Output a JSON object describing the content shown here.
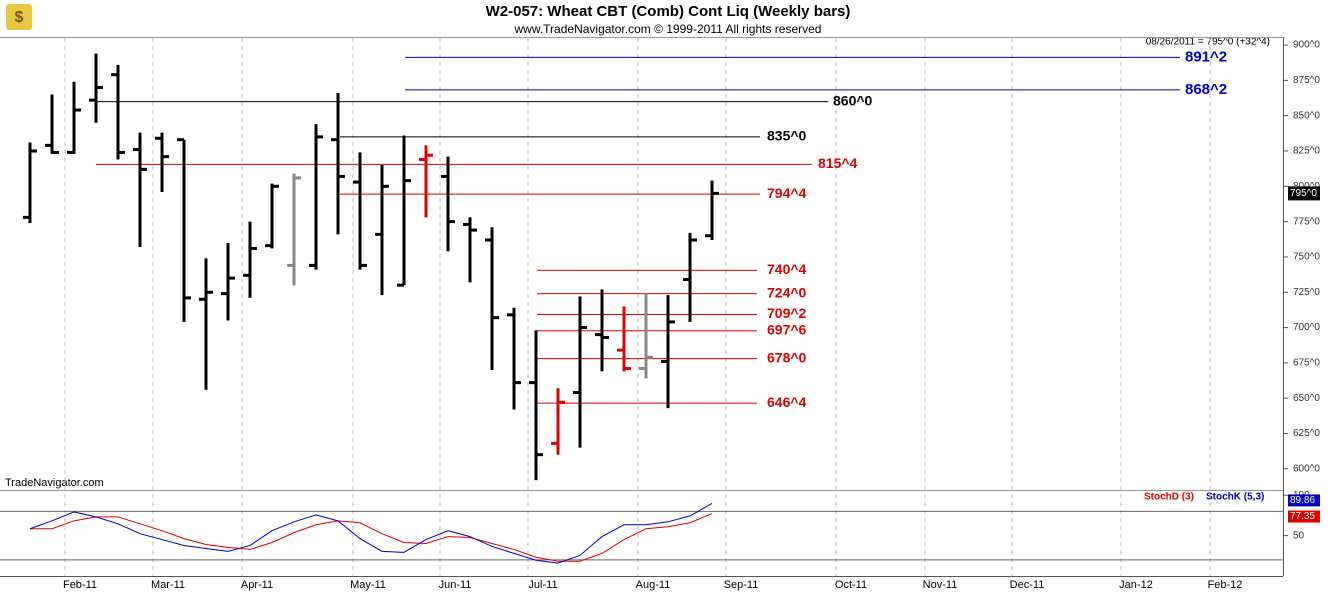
{
  "header": {
    "title": "W2-057:  Wheat CBT (Comb) Cont Liq  (Weekly bars)",
    "subtitle": "www.TradeNavigator.com © 1999-2011 All rights reserved",
    "last_quote": "08/26/2011 = 795^0 (+32^4)",
    "watermark": "TradeNavigator.com"
  },
  "chart_data": [
    {
      "type": "ohlc",
      "x_labels": [
        "Feb-11",
        "Mar-11",
        "Apr-11",
        "May-11",
        "Jun-11",
        "Jul-11",
        "Aug-11",
        "Sep-11",
        "Oct-11",
        "Nov-11",
        "Dec-11",
        "Jan-12",
        "Feb-12"
      ],
      "open": [
        778,
        829,
        824,
        861,
        879,
        826,
        834,
        833,
        720,
        724,
        737,
        758,
        744,
        744,
        833,
        803,
        766,
        730,
        819,
        807,
        773,
        762,
        709,
        661,
        618,
        654,
        695,
        684,
        671,
        676,
        734,
        765
      ],
      "high": [
        831,
        865,
        874,
        894,
        886,
        838,
        838,
        833,
        749,
        760,
        775,
        802,
        809,
        844,
        866,
        824,
        815,
        836,
        829,
        821,
        778,
        771,
        714,
        698,
        657,
        722,
        727,
        715,
        724,
        723,
        767,
        804
      ],
      "low": [
        774,
        823,
        823,
        845,
        819,
        757,
        796,
        704,
        656,
        705,
        721,
        756,
        730,
        741,
        766,
        741,
        723,
        730,
        778,
        754,
        732,
        670,
        642,
        592,
        610,
        615,
        669,
        669,
        664,
        643,
        704,
        762
      ],
      "close": [
        825,
        824,
        854,
        870,
        824,
        812,
        821,
        721,
        725,
        735,
        756,
        800,
        806,
        835,
        807,
        744,
        800,
        804,
        822,
        775,
        769,
        707,
        661,
        610,
        647,
        700,
        693,
        671,
        679,
        704,
        762,
        795
      ],
      "colors": [
        "#000",
        "#000",
        "#000",
        "#000",
        "#000",
        "#000",
        "#000",
        "#000",
        "#000",
        "#000",
        "#000",
        "#000",
        "#888",
        "#000",
        "#000",
        "#000",
        "#000",
        "#000",
        "#e00000",
        "#000",
        "#000",
        "#000",
        "#000",
        "#000",
        "#e00000",
        "#000",
        "#000",
        "#e00000",
        "#888",
        "#000",
        "#000",
        "#000"
      ],
      "ylim": [
        585,
        905
      ],
      "yticks": [
        {
          "value": 900,
          "label": "900^0"
        },
        {
          "value": 875,
          "label": "875^0"
        },
        {
          "value": 850,
          "label": "850^0"
        },
        {
          "value": 825,
          "label": "825^0"
        },
        {
          "value": 800,
          "label": "800^0"
        },
        {
          "value": 775,
          "label": "775^0"
        },
        {
          "value": 750,
          "label": "750^0"
        },
        {
          "value": 725,
          "label": "725^0"
        },
        {
          "value": 700,
          "label": "700^0"
        },
        {
          "value": 675,
          "label": "675^0"
        },
        {
          "value": 650,
          "label": "650^0"
        },
        {
          "value": 625,
          "label": "625^0"
        },
        {
          "value": 600,
          "label": "600^0"
        }
      ],
      "last_price": {
        "value": 795,
        "label": "795^0"
      },
      "levels": [
        {
          "value": 891.25,
          "label": "891^2",
          "color": "#0000c8"
        },
        {
          "value": 868.25,
          "label": "868^2",
          "color": "#0000c8"
        },
        {
          "value": 860,
          "label": "860^0",
          "color": "#000000"
        },
        {
          "value": 835,
          "label": "835^0",
          "color": "#000000"
        },
        {
          "value": 815.5,
          "label": "815^4",
          "color": "#e00000"
        },
        {
          "value": 794.5,
          "label": "794^4",
          "color": "#e00000"
        },
        {
          "value": 740.5,
          "label": "740^4",
          "color": "#e00000"
        },
        {
          "value": 724,
          "label": "724^0",
          "color": "#e00000"
        },
        {
          "value": 709.25,
          "label": "709^2",
          "color": "#e00000"
        },
        {
          "value": 697.75,
          "label": "697^6",
          "color": "#e00000"
        },
        {
          "value": 678,
          "label": "678^0",
          "color": "#e00000"
        },
        {
          "value": 646.5,
          "label": "646^4",
          "color": "#e00000"
        }
      ]
    },
    {
      "type": "line",
      "series": [
        {
          "name": "StochD (3)",
          "color": "#e00000",
          "values": [
            58.5,
            58.5,
            68.3,
            73.2,
            73.2,
            64.6,
            56.1,
            46.3,
            39,
            35.4,
            32.9,
            41.5,
            53.7,
            63.4,
            68.3,
            65.9,
            52.4,
            41.5,
            40.2,
            48.8,
            47.6,
            40.2,
            32.9,
            23.2,
            18.3,
            18.3,
            28,
            45.1,
            58.5,
            61,
            65.9,
            77.35
          ]
        },
        {
          "name": "StochK (5,3)",
          "color": "#0000c8",
          "values": [
            58.5,
            68.3,
            79.3,
            73.2,
            64.6,
            52.4,
            45.1,
            37.8,
            34.1,
            30.5,
            37.8,
            56.1,
            67.1,
            75.6,
            68.3,
            46.3,
            30.5,
            29.3,
            45.1,
            56.1,
            48.8,
            36.6,
            28,
            19.5,
            15.9,
            25.6,
            48.8,
            63.4,
            63.4,
            67.1,
            74.4,
            89.86
          ]
        }
      ],
      "ref_lines": [
        80,
        20
      ],
      "ylim": [
        0,
        104
      ],
      "yticks": [
        100,
        50
      ]
    }
  ]
}
